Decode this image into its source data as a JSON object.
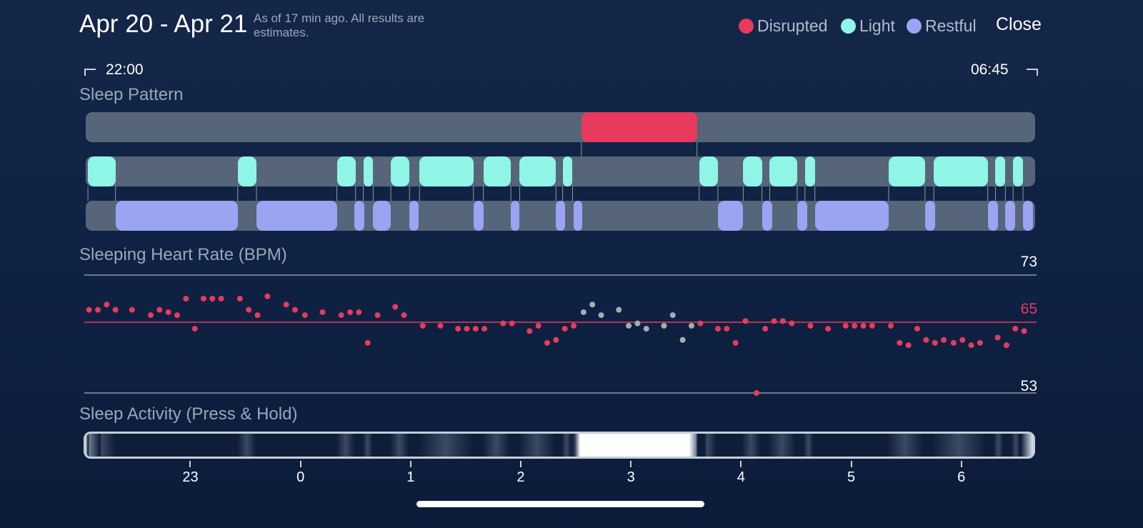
{
  "header": {
    "title": "Apr 20 - Apr 21",
    "subtitle": "As of 17 min ago. All results are estimates.",
    "close_label": "Close"
  },
  "legend": [
    {
      "label": "Disrupted",
      "color": "#e83a5c"
    },
    {
      "label": "Light",
      "color": "#8ff5e6"
    },
    {
      "label": "Restful",
      "color": "#9aa4f2"
    }
  ],
  "time_range": {
    "start": "22:00",
    "end": "06:45"
  },
  "sleep_pattern": {
    "title": "Sleep Pattern",
    "disrupted": [
      [
        2.55,
        3.6
      ]
    ],
    "light": [
      [
        -1.93,
        -1.68
      ],
      [
        -0.57,
        -0.4
      ],
      [
        0.33,
        0.5
      ],
      [
        0.57,
        0.66
      ],
      [
        0.82,
        0.99
      ],
      [
        1.08,
        1.57
      ],
      [
        1.66,
        1.91
      ],
      [
        1.99,
        2.32
      ],
      [
        2.38,
        2.47
      ],
      [
        3.62,
        3.79
      ],
      [
        4.02,
        4.19
      ],
      [
        4.26,
        4.51
      ],
      [
        4.58,
        4.67
      ],
      [
        5.34,
        5.67
      ],
      [
        5.75,
        6.24
      ],
      [
        6.31,
        6.4
      ],
      [
        6.47,
        6.56
      ]
    ],
    "restful": [
      [
        -1.68,
        -0.57
      ],
      [
        -0.4,
        0.33
      ],
      [
        0.49,
        0.58
      ],
      [
        0.66,
        0.82
      ],
      [
        0.99,
        1.07
      ],
      [
        1.57,
        1.66
      ],
      [
        1.91,
        1.99
      ],
      [
        2.32,
        2.4
      ],
      [
        2.48,
        2.56
      ],
      [
        3.79,
        4.02
      ],
      [
        4.19,
        4.28
      ],
      [
        4.51,
        4.6
      ],
      [
        4.67,
        5.34
      ],
      [
        5.67,
        5.76
      ],
      [
        6.24,
        6.33
      ],
      [
        6.4,
        6.49
      ],
      [
        6.56,
        6.65
      ]
    ]
  },
  "heart_rate": {
    "title": "Sleeping Heart Rate (BPM)",
    "max_label": "73",
    "avg_label": "65",
    "min_label": "53",
    "max": 73,
    "avg": 65,
    "min": 53,
    "disrupted_color": "#e83a5c",
    "disrupted_point_color": "#a8acb3",
    "points": [
      [
        -1.92,
        67.1
      ],
      [
        -1.84,
        67.1
      ],
      [
        -1.76,
        68.0
      ],
      [
        -1.68,
        67.1
      ],
      [
        -1.53,
        67.1
      ],
      [
        -1.36,
        66.2
      ],
      [
        -1.28,
        67.1
      ],
      [
        -1.2,
        66.7
      ],
      [
        -1.12,
        66.2
      ],
      [
        -1.04,
        69.0
      ],
      [
        -0.96,
        63.9
      ],
      [
        -0.88,
        69.0
      ],
      [
        -0.8,
        69.0
      ],
      [
        -0.72,
        69.0
      ],
      [
        -0.55,
        69.0
      ],
      [
        -0.47,
        67.1
      ],
      [
        -0.39,
        66.2
      ],
      [
        -0.3,
        69.4
      ],
      [
        -0.13,
        68.0
      ],
      [
        -0.05,
        67.1
      ],
      [
        0.04,
        66.2
      ],
      [
        0.2,
        66.7
      ],
      [
        0.37,
        66.2
      ],
      [
        0.45,
        66.7
      ],
      [
        0.53,
        66.7
      ],
      [
        0.61,
        61.5
      ],
      [
        0.7,
        66.2
      ],
      [
        0.86,
        67.6
      ],
      [
        0.94,
        66.2
      ],
      [
        1.11,
        64.4
      ],
      [
        1.27,
        64.4
      ],
      [
        1.43,
        63.9
      ],
      [
        1.51,
        63.9
      ],
      [
        1.59,
        63.9
      ],
      [
        1.67,
        63.9
      ],
      [
        1.84,
        64.8
      ],
      [
        1.92,
        64.8
      ],
      [
        2.08,
        63.5
      ],
      [
        2.16,
        64.4
      ],
      [
        2.24,
        61.5
      ],
      [
        2.32,
        62.0
      ],
      [
        2.4,
        63.9
      ],
      [
        2.48,
        64.4
      ],
      [
        2.57,
        66.7
      ],
      [
        2.65,
        68.0
      ],
      [
        2.73,
        66.2
      ],
      [
        2.89,
        67.1
      ],
      [
        2.98,
        64.4
      ],
      [
        3.06,
        64.8
      ],
      [
        3.14,
        63.9
      ],
      [
        3.3,
        64.4
      ],
      [
        3.38,
        66.2
      ],
      [
        3.47,
        62.0
      ],
      [
        3.55,
        64.4
      ],
      [
        3.63,
        64.8
      ],
      [
        3.79,
        63.9
      ],
      [
        3.87,
        63.9
      ],
      [
        3.95,
        61.5
      ],
      [
        4.04,
        65.2
      ],
      [
        4.14,
        53.0
      ],
      [
        4.22,
        63.9
      ],
      [
        4.3,
        65.2
      ],
      [
        4.38,
        65.2
      ],
      [
        4.46,
        64.8
      ],
      [
        4.63,
        64.4
      ],
      [
        4.79,
        63.9
      ],
      [
        4.95,
        64.4
      ],
      [
        5.03,
        64.4
      ],
      [
        5.11,
        64.4
      ],
      [
        5.19,
        64.4
      ],
      [
        5.36,
        64.4
      ],
      [
        5.44,
        61.5
      ],
      [
        5.52,
        61.1
      ],
      [
        5.6,
        63.9
      ],
      [
        5.68,
        62.0
      ],
      [
        5.76,
        61.5
      ],
      [
        5.84,
        62.0
      ],
      [
        5.93,
        61.5
      ],
      [
        6.01,
        62.0
      ],
      [
        6.09,
        61.1
      ],
      [
        6.17,
        61.5
      ],
      [
        6.33,
        62.4
      ],
      [
        6.41,
        61.1
      ],
      [
        6.49,
        63.9
      ],
      [
        6.57,
        63.5
      ]
    ]
  },
  "activity": {
    "title": "Sleep Activity (Press & Hold)",
    "hours": [
      "23",
      "0",
      "1",
      "2",
      "3",
      "4",
      "5",
      "6"
    ]
  },
  "time_axis": {
    "start_hour": -1.95,
    "end_hour": 6.67
  }
}
